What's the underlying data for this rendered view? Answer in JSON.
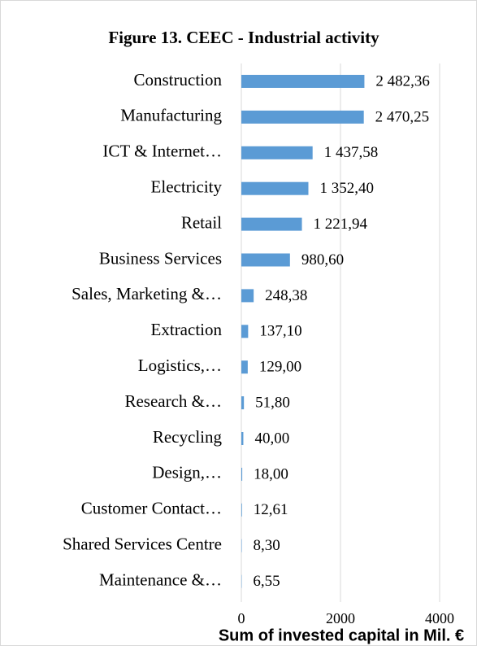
{
  "chart_data": {
    "type": "bar",
    "orientation": "horizontal",
    "title": "Figure 13. CEEC - Industrial activity",
    "x_label": "Sum of invested capital in Mil. €",
    "categories": [
      "Construction",
      "Manufacturing",
      "ICT & Internet…",
      "Electricity",
      "Retail",
      "Business Services",
      "Sales, Marketing &…",
      "Extraction",
      "Logistics,…",
      "Research &…",
      "Recycling",
      "Design,…",
      "Customer Contact…",
      "Shared Services Centre",
      "Maintenance &…"
    ],
    "values": [
      2482.36,
      2470.25,
      1437.58,
      1352.4,
      1221.94,
      980.6,
      248.38,
      137.1,
      129.0,
      51.8,
      40.0,
      18.0,
      12.61,
      8.3,
      6.55
    ],
    "value_labels": [
      "2 482,36",
      "2 470,25",
      "1 437,58",
      "1 352,40",
      "1 221,94",
      "980,60",
      "248,38",
      "137,10",
      "129,00",
      "51,80",
      "40,00",
      "18,00",
      "12,61",
      "8,30",
      "6,55"
    ],
    "color": "#5b9bd5",
    "xlim": [
      0,
      4000
    ],
    "xticks": [
      0,
      2000,
      4000
    ],
    "grid": true
  }
}
